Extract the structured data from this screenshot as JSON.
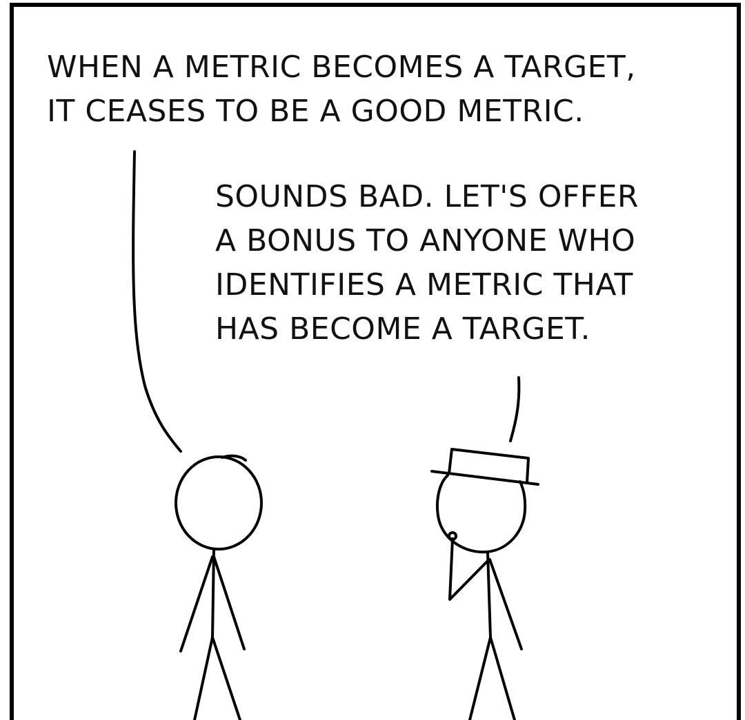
{
  "comic": {
    "left_speech": {
      "lines": [
        "WHEN A METRIC BECOMES A TARGET,",
        "IT CEASES TO BE A GOOD METRIC."
      ]
    },
    "right_speech": {
      "lines": [
        "SOUNDS BAD. LET'S OFFER",
        "A BONUS TO ANYONE WHO",
        "IDENTIFIES A METRIC THAT",
        "HAS BECOME A TARGET."
      ]
    }
  }
}
